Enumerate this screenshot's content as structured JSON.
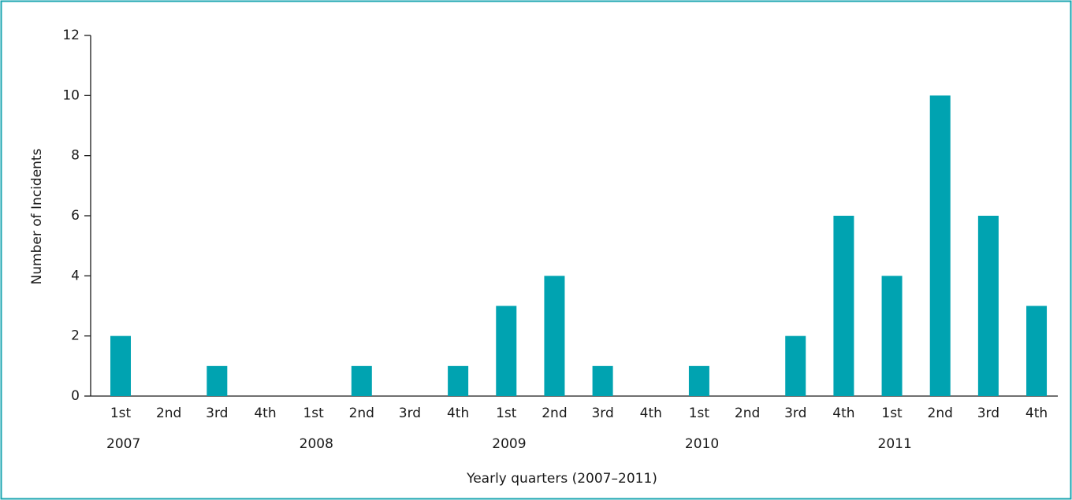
{
  "chart_data": {
    "type": "bar",
    "y_label": "Number of Incidents",
    "x_label": "Yearly quarters (2007–2011)",
    "categories": [
      "1st",
      "2nd",
      "3rd",
      "4th",
      "1st",
      "2nd",
      "3rd",
      "4th",
      "1st",
      "2nd",
      "3rd",
      "4th",
      "1st",
      "2nd",
      "3rd",
      "4th",
      "1st",
      "2nd",
      "3rd",
      "4th"
    ],
    "year_labels": [
      "2007",
      "2008",
      "2009",
      "2010",
      "2011"
    ],
    "values": [
      2,
      0,
      1,
      0,
      0,
      1,
      0,
      1,
      3,
      4,
      1,
      0,
      1,
      0,
      2,
      6,
      4,
      10,
      6,
      3
    ],
    "color": "#00a3b1",
    "ylim": [
      0,
      12
    ],
    "yticks": [
      0,
      2,
      4,
      6,
      8,
      10,
      12
    ],
    "grid": false
  }
}
